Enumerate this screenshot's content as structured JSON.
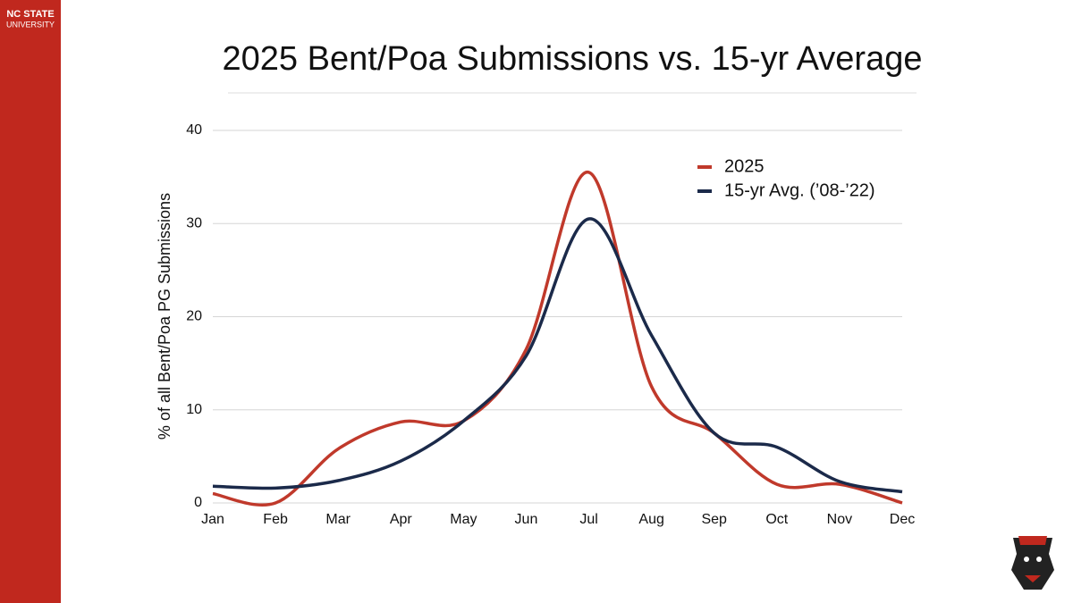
{
  "branding": {
    "line1": "NC STATE",
    "line2": "UNIVERSITY"
  },
  "chart_data": {
    "type": "line",
    "title": "2025 Bent/Poa Submissions vs. 15-yr Average",
    "y_label": "% of all Bent/Poa PG Submissions",
    "categories": [
      "Jan",
      "Feb",
      "Mar",
      "Apr",
      "May",
      "Jun",
      "Jul",
      "Aug",
      "Sep",
      "Oct",
      "Nov",
      "Dec"
    ],
    "series": [
      {
        "name": "2025",
        "color": "#c0392b",
        "values": [
          1,
          0,
          5.8,
          8.7,
          8.8,
          16.5,
          35.5,
          12.5,
          7.5,
          2,
          2,
          0
        ]
      },
      {
        "name": "15-yr Avg. (’08-’22)",
        "color": "#1b2a4a",
        "values": [
          1.8,
          1.6,
          2.4,
          4.5,
          8.8,
          15.8,
          30.5,
          18,
          7.5,
          6,
          2.3,
          1.2
        ]
      }
    ],
    "ylim": [
      0,
      40
    ],
    "yticks": [
      0,
      10,
      20,
      30,
      40
    ],
    "grid": true,
    "legend": "top-right",
    "smooth": true
  }
}
